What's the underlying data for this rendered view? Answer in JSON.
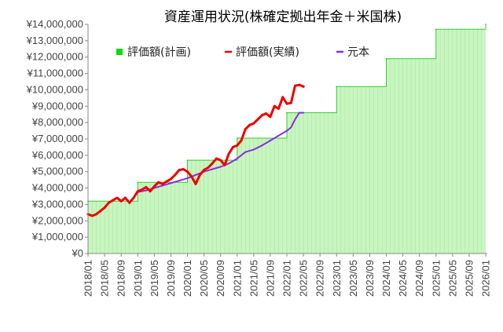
{
  "chart_data": {
    "type": "area",
    "title": "資産運用状況(株確定拠出年金＋米国株)",
    "xlabel": "",
    "ylabel": "",
    "ylim": [
      0,
      14000000
    ],
    "yticks": [
      0,
      1000000,
      2000000,
      3000000,
      4000000,
      5000000,
      6000000,
      7000000,
      8000000,
      9000000,
      10000000,
      11000000,
      12000000,
      13000000,
      14000000
    ],
    "ytick_labels": [
      "¥0",
      "¥1,000,000",
      "¥2,000,000",
      "¥3,000,000",
      "¥4,000,000",
      "¥5,000,000",
      "¥6,000,000",
      "¥7,000,000",
      "¥8,000,000",
      "¥9,000,000",
      "¥10,000,000",
      "¥11,000,000",
      "¥12,000,000",
      "¥13,000,000",
      "¥14,000,000"
    ],
    "xlim": [
      "2018/01",
      "2026/01"
    ],
    "xtick_labels": [
      "2018/01",
      "2018/05",
      "2018/09",
      "2019/01",
      "2019/05",
      "2019/09",
      "2020/01",
      "2020/05",
      "2020/09",
      "2021/01",
      "2021/05",
      "2021/09",
      "2022/01",
      "2022/05",
      "2022/09",
      "2023/01",
      "2023/05",
      "2023/09",
      "2024/01",
      "2024/05",
      "2024/09",
      "2025/01",
      "2025/05",
      "2025/09",
      "2026/01"
    ],
    "legend": {
      "position": "top-left"
    },
    "grid": false,
    "series": [
      {
        "name": "評価額(計画)",
        "kind": "area-step",
        "color": "#00dd00",
        "fill": "#c8f5c0",
        "points": [
          [
            "2018/01",
            3200000
          ],
          [
            "2019/01",
            4350000
          ],
          [
            "2020/01",
            5700000
          ],
          [
            "2021/01",
            7050000
          ],
          [
            "2022/01",
            8600000
          ],
          [
            "2023/01",
            10200000
          ],
          [
            "2024/01",
            11900000
          ],
          [
            "2025/01",
            13700000
          ],
          [
            "2026/01",
            14000000
          ]
        ]
      },
      {
        "name": "評価額(実績)",
        "kind": "line",
        "color": "#ee0000",
        "points": [
          [
            "2018/01",
            2400000
          ],
          [
            "2018/02",
            2300000
          ],
          [
            "2018/03",
            2400000
          ],
          [
            "2018/04",
            2600000
          ],
          [
            "2018/05",
            2800000
          ],
          [
            "2018/06",
            3100000
          ],
          [
            "2018/07",
            3250000
          ],
          [
            "2018/08",
            3400000
          ],
          [
            "2018/09",
            3200000
          ],
          [
            "2018/10",
            3400000
          ],
          [
            "2018/11",
            3100000
          ],
          [
            "2018/12",
            3400000
          ],
          [
            "2019/01",
            3800000
          ],
          [
            "2019/02",
            3900000
          ],
          [
            "2019/03",
            4050000
          ],
          [
            "2019/04",
            3800000
          ],
          [
            "2019/05",
            4100000
          ],
          [
            "2019/06",
            4350000
          ],
          [
            "2019/07",
            4250000
          ],
          [
            "2019/08",
            4400000
          ],
          [
            "2019/09",
            4550000
          ],
          [
            "2019/10",
            4800000
          ],
          [
            "2019/11",
            5100000
          ],
          [
            "2019/12",
            5150000
          ],
          [
            "2020/01",
            5000000
          ],
          [
            "2020/02",
            4700000
          ],
          [
            "2020/03",
            4250000
          ],
          [
            "2020/04",
            4800000
          ],
          [
            "2020/05",
            5100000
          ],
          [
            "2020/06",
            5250000
          ],
          [
            "2020/07",
            5500000
          ],
          [
            "2020/08",
            5800000
          ],
          [
            "2020/09",
            5700000
          ],
          [
            "2020/10",
            5400000
          ],
          [
            "2020/11",
            6100000
          ],
          [
            "2020/12",
            6500000
          ],
          [
            "2021/01",
            6600000
          ],
          [
            "2021/02",
            6900000
          ],
          [
            "2021/03",
            7600000
          ],
          [
            "2021/04",
            7850000
          ],
          [
            "2021/05",
            7950000
          ],
          [
            "2021/06",
            8200000
          ],
          [
            "2021/07",
            8450000
          ],
          [
            "2021/08",
            8550000
          ],
          [
            "2021/09",
            8350000
          ],
          [
            "2021/10",
            9000000
          ],
          [
            "2021/11",
            8850000
          ],
          [
            "2021/12",
            9550000
          ],
          [
            "2022/01",
            9150000
          ],
          [
            "2022/02",
            9200000
          ],
          [
            "2022/03",
            10250000
          ],
          [
            "2022/04",
            10300000
          ],
          [
            "2022/05",
            10200000
          ]
        ]
      },
      {
        "name": "元本",
        "kind": "line",
        "color": "#8a2be2",
        "points": [
          [
            "2019/01",
            3750000
          ],
          [
            "2019/03",
            3850000
          ],
          [
            "2019/05",
            4000000
          ],
          [
            "2019/07",
            4150000
          ],
          [
            "2019/09",
            4300000
          ],
          [
            "2019/11",
            4450000
          ],
          [
            "2020/01",
            4600000
          ],
          [
            "2020/03",
            4800000
          ],
          [
            "2020/05",
            5000000
          ],
          [
            "2020/07",
            5150000
          ],
          [
            "2020/09",
            5300000
          ],
          [
            "2020/11",
            5500000
          ],
          [
            "2021/01",
            5800000
          ],
          [
            "2021/03",
            6200000
          ],
          [
            "2021/05",
            6350000
          ],
          [
            "2021/07",
            6600000
          ],
          [
            "2021/09",
            6900000
          ],
          [
            "2021/11",
            7200000
          ],
          [
            "2022/01",
            7500000
          ],
          [
            "2022/02",
            7700000
          ],
          [
            "2022/03",
            8200000
          ],
          [
            "2022/04",
            8600000
          ],
          [
            "2022/05",
            8600000
          ]
        ]
      }
    ]
  }
}
